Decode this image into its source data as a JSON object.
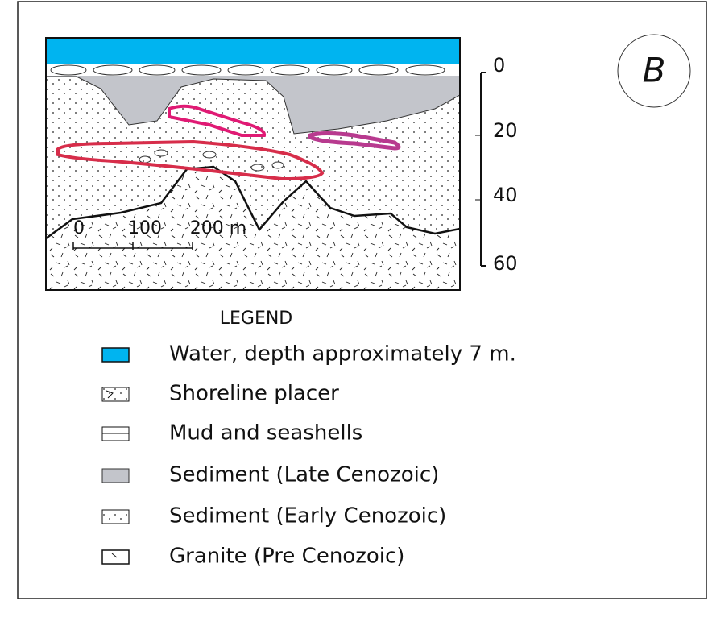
{
  "panel_label": "B",
  "depth_scale": [
    "0",
    "20",
    "40",
    "60"
  ],
  "scale_bar": [
    "0",
    "100",
    "200 m"
  ],
  "legend": {
    "title": "LEGEND",
    "items": [
      "Water, depth approximately 7 m.",
      "Shoreline placer",
      "Mud and seashells",
      "Sediment (Late Cenozoic)",
      "Sediment (Early Cenozoic)",
      "Granite (Pre Cenozoic)"
    ]
  }
}
